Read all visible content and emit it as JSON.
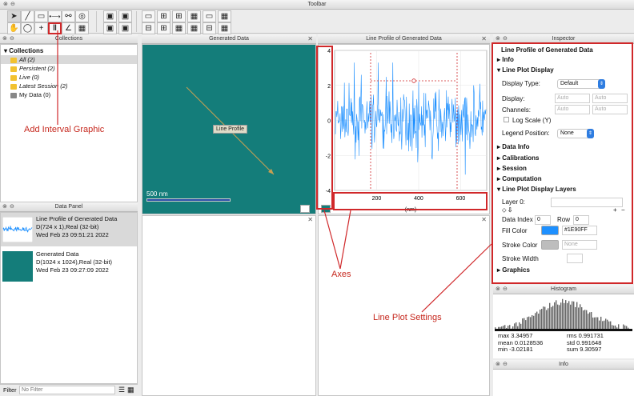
{
  "toolbar": {
    "title": "Toolbar"
  },
  "collections": {
    "title": "Collections",
    "heading": "Collections",
    "items": [
      {
        "label": "All (2)",
        "icon": "folder-icon",
        "selected": true
      },
      {
        "label": "Persistent (2)",
        "icon": "folder-icon"
      },
      {
        "label": "Live (0)",
        "icon": "folder-icon"
      },
      {
        "label": "Latest Session (2)",
        "icon": "folder-icon"
      },
      {
        "label": "My Data (0)",
        "icon": "document-icon"
      }
    ]
  },
  "data_panel": {
    "title": "Data Panel",
    "items": [
      {
        "line1": "Line Profile of Generated Data",
        "line2": "D(724 x 1),Real (32-bit)",
        "line3": "Wed Feb 23 09:51:21 2022"
      },
      {
        "line1": "Generated Data",
        "line2": "D(1024 x 1024),Real (32-bit)",
        "line3": "Wed Feb 23 09:27:09 2022"
      }
    ],
    "filter_label": "Filter",
    "filter_placeholder": "No Filter"
  },
  "generated_data": {
    "title": "Generated Data",
    "scale_label": "500 nm",
    "line_profile_label": "Line Profile"
  },
  "line_profile": {
    "title": "Line Profile of Generated Data",
    "y_ticks": [
      "4",
      "2",
      "0",
      "-2",
      "-4"
    ],
    "x_ticks": [
      "200",
      "400",
      "600"
    ],
    "x_unit": "(nm)"
  },
  "inspector": {
    "title": "Inspector",
    "heading": "Line Profile of Generated Data",
    "info": "Info",
    "line_plot_display": "Line Plot Display",
    "display_type_label": "Display Type:",
    "display_type_value": "Default",
    "display_label": "Display:",
    "channels_label": "Channels:",
    "auto": "Auto",
    "log_scale": "Log Scale (Y)",
    "legend_position_label": "Legend Position:",
    "legend_position_value": "None",
    "data_info": "Data Info",
    "calibrations": "Calibrations",
    "session": "Session",
    "computation": "Computation",
    "layers": "Line Plot Display Layers",
    "layer_label": "Layer 0:",
    "data_index_label": "Data Index",
    "data_index_value": "0",
    "row_label": "Row",
    "row_value": "0",
    "fill_color_label": "Fill Color",
    "fill_color_value": "#1E90FF",
    "stroke_color_label": "Stroke Color",
    "stroke_color_placeholder": "None",
    "stroke_width_label": "Stroke Width",
    "graphics": "Graphics",
    "plus": "+",
    "minus": "−"
  },
  "histogram": {
    "title": "Histogram",
    "max": "max 3.34957",
    "mean": "mean 0.0128536",
    "min": "min -3.02181",
    "rms": "rms 0.991731",
    "std": "std 0.991648",
    "sum": "sum 9.30597"
  },
  "info_panel": {
    "title": "Info"
  },
  "annotations": {
    "interval": "Add Interval Graphic",
    "axes": "Axes",
    "line_plot_settings": "Line Plot Settings"
  },
  "colors": {
    "accent": "#2f7de1",
    "plot_line": "#1E90FF",
    "annotation": "#d0282a",
    "image_bg": "#147d7a"
  }
}
